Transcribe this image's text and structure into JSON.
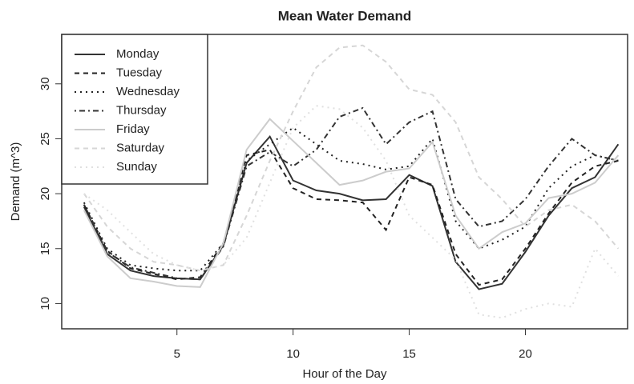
{
  "chart_data": {
    "type": "line",
    "title": "Mean Water Demand",
    "x_label": "Hour of the Day",
    "y_label": "Demand (m^3)",
    "x": [
      1,
      2,
      3,
      4,
      5,
      6,
      7,
      8,
      9,
      10,
      11,
      12,
      13,
      14,
      15,
      16,
      17,
      18,
      19,
      20,
      21,
      22,
      23,
      24
    ],
    "xlim": [
      0.04,
      24.4
    ],
    "xticks": [
      5,
      10,
      15,
      20
    ],
    "ylim": [
      7.7,
      34.5
    ],
    "yticks": [
      10,
      15,
      20,
      25,
      30
    ],
    "legend": "top-left",
    "series": [
      {
        "name": "Monday",
        "color": "#333333",
        "line_style": "solid",
        "values": [
          18.8,
          14.5,
          13,
          12.5,
          12.3,
          12.2,
          15.3,
          22.8,
          25.2,
          21.2,
          20.3,
          20,
          19.4,
          19.5,
          21.7,
          20.7,
          13.8,
          11.3,
          11.8,
          14.7,
          18,
          20.5,
          21.5,
          24.5
        ]
      },
      {
        "name": "Tuesday",
        "color": "#222222",
        "line_style": "dashed",
        "values": [
          19,
          14.8,
          13.2,
          12.7,
          12.2,
          12.4,
          15.5,
          23.5,
          24,
          20.5,
          19.5,
          19.4,
          19.2,
          16.7,
          21.5,
          20.8,
          14.5,
          11.7,
          12.2,
          15,
          18.2,
          21,
          22.5,
          23
        ]
      },
      {
        "name": "Wednesday",
        "color": "#222222",
        "line_style": "dotted",
        "values": [
          19.2,
          15,
          13.5,
          13.2,
          13,
          13,
          15.5,
          23,
          24.5,
          26,
          24.5,
          23,
          22.7,
          22.2,
          22.5,
          25,
          17.5,
          15,
          15.8,
          17,
          20.5,
          22.5,
          23.5,
          23
        ]
      },
      {
        "name": "Thursday",
        "color": "#333333",
        "line_style": "dotdash",
        "values": [
          19,
          14.7,
          13.3,
          12.8,
          12.3,
          12.2,
          15.2,
          22.5,
          23.8,
          22.5,
          24,
          27,
          27.8,
          24.5,
          26.5,
          27.5,
          19.5,
          17,
          17.5,
          19.5,
          22.5,
          25,
          23.5,
          23
        ]
      },
      {
        "name": "Friday",
        "color": "#cccccc",
        "line_style": "solid",
        "values": [
          18.5,
          14.3,
          12.3,
          12,
          11.6,
          11.5,
          15.5,
          24,
          26.8,
          24.8,
          22.8,
          20.8,
          21.2,
          22,
          22.3,
          24.7,
          18,
          15,
          16.5,
          17.3,
          19.6,
          20,
          21,
          23.5
        ]
      },
      {
        "name": "Saturday",
        "color": "#d6d6d6",
        "line_style": "dashed",
        "values": [
          20,
          17,
          15,
          13.8,
          13.5,
          13,
          13.5,
          18,
          23,
          27.5,
          31.5,
          33.3,
          33.5,
          32,
          29.5,
          29,
          26.5,
          21.5,
          19.5,
          17,
          18.5,
          19,
          17.5,
          15
        ]
      },
      {
        "name": "Sunday",
        "color": "#e0e0e0",
        "line_style": "dotted",
        "values": [
          20,
          18.5,
          16.5,
          14.5,
          13.5,
          13,
          13.5,
          16,
          21,
          26,
          28,
          27.7,
          26,
          23,
          18,
          16,
          14,
          9,
          8.7,
          9.5,
          10,
          9.7,
          15,
          12.5
        ]
      }
    ]
  }
}
